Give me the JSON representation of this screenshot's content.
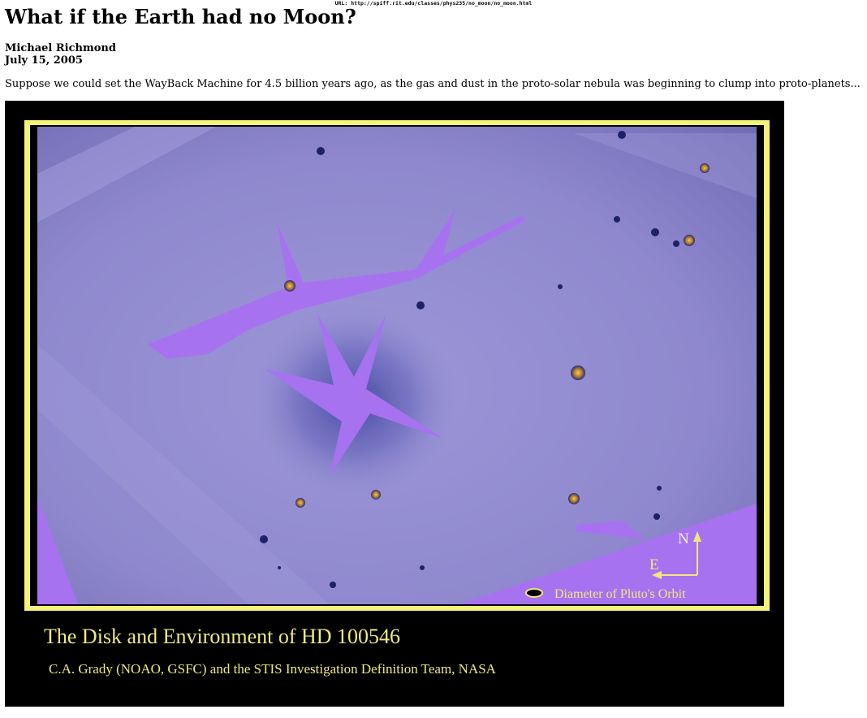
{
  "page": {
    "url_label": "URL: http://spiff.rit.edu/classes/phys235/no_moon/no_moon.html",
    "title": "What if the Earth had no Moon?",
    "author": "Michael Richmond",
    "date": "July 15, 2005",
    "intro": "Suppose we could set the WayBack Machine for 4.5 billion years ago, as the gas and dust in the proto-solar nebula was beginning to clump into proto-planets..."
  },
  "figure": {
    "caption_title": "The Disk and Environment of HD 100546",
    "caption_credit": "C.A. Grady (NOAO, GSFC) and the STIS Investigation Definition Team, NASA",
    "legend_label": "Diameter of Pluto's Orbit",
    "compass_north": "N",
    "compass_east": "E",
    "colors": {
      "frame": "#f4f27a",
      "sky": "#8e86cc",
      "mask": "#a772f0",
      "caption": "#efe87f"
    }
  }
}
